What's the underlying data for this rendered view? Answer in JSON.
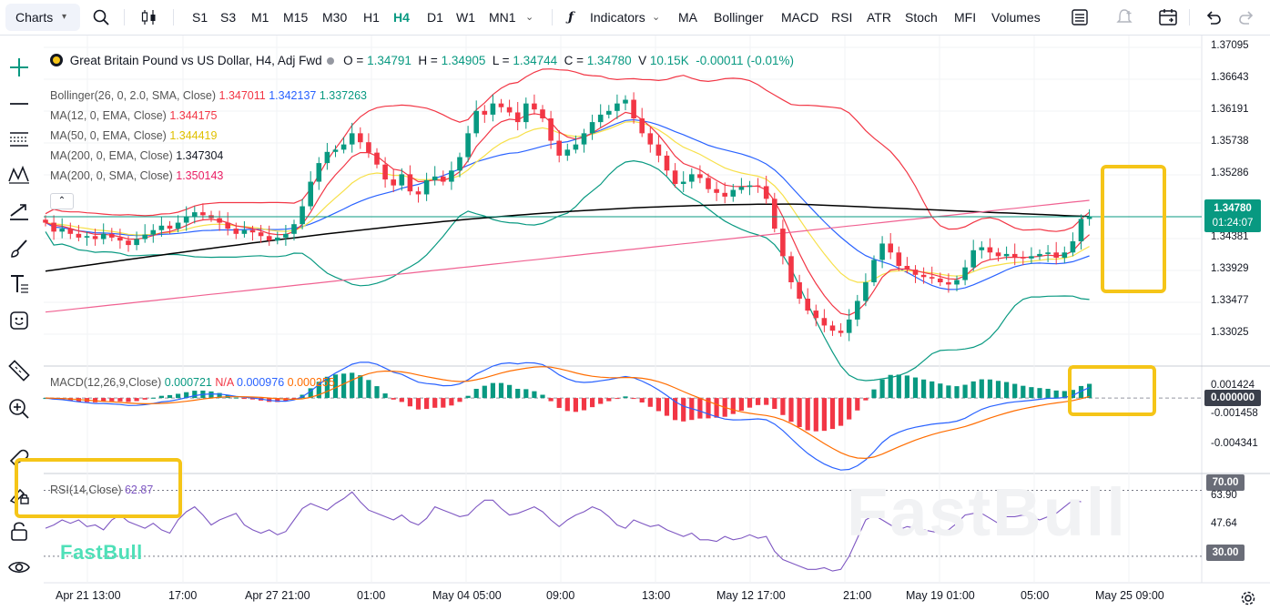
{
  "toolbar": {
    "charts_label": "Charts",
    "timeframes": [
      "S1",
      "S3",
      "M1",
      "M15",
      "M30",
      "H1",
      "H4",
      "D1",
      "W1",
      "MN1"
    ],
    "active_timeframe": "H4",
    "indicators_label": "Indicators",
    "quick_indicators": [
      "MA",
      "Bollinger",
      "MACD",
      "RSI",
      "ATR",
      "Stoch",
      "MFI",
      "Volumes"
    ]
  },
  "legend": {
    "symbol": "Great Britain Pound vs US Dollar, H4, Adj Fwd",
    "o_label": "O =",
    "o": "1.34791",
    "h_label": "H =",
    "h": "1.34905",
    "l_label": "L =",
    "l": "1.34744",
    "c_label": "C =",
    "c": "1.34780",
    "v_label": "V",
    "v": "10.15K",
    "change": "-0.00011 (-0.01%)",
    "bollinger_name": "Bollinger(26, 0, 2.0, SMA, Close)",
    "bollinger_upper": "1.347011",
    "bollinger_mid": "1.342137",
    "bollinger_lower": "1.337263",
    "ma12_name": "MA(12, 0, EMA, Close)",
    "ma12_value": "1.344175",
    "ma50_name": "MA(50, 0, EMA, Close)",
    "ma50_value": "1.344419",
    "ma200e_name": "MA(200, 0, EMA, Close)",
    "ma200e_value": "1.347304",
    "ma200s_name": "MA(200, 0, SMA, Close)",
    "ma200s_value": "1.350143",
    "macd_name": "MACD(12,26,9,Close)",
    "macd_hist": "0.000721",
    "macd_na": "N/A",
    "macd_line": "0.000976",
    "macd_signal": "0.000255",
    "rsi_name": "RSI(14,Close)",
    "rsi_value": "62.87"
  },
  "colors": {
    "up": "#089981",
    "down": "#f23645",
    "boll": "#f23645",
    "mid": "#2962ff",
    "lower": "#089981",
    "ma12": "#f23645",
    "ma50": "#f7e049",
    "ma200e": "#000000",
    "ma200s": "#f06292",
    "macd": "#2962ff",
    "signal": "#ff6d00",
    "rsi": "#7e57c2",
    "highlight": "#f5c518"
  },
  "price_axis": [
    "1.37095",
    "1.36643",
    "1.36191",
    "1.35738",
    "1.35286",
    "1.34381",
    "1.33929",
    "1.33477",
    "1.33025"
  ],
  "current_price": {
    "price": "1.34780",
    "countdown": "01:24:07"
  },
  "macd_axis": [
    "0.001424",
    "0.000000",
    "-0.001458",
    "-0.004341"
  ],
  "rsi_axis": {
    "upper": "70.00",
    "value": "63.90",
    "mid": "47.64",
    "lower": "30.00"
  },
  "time_axis": [
    "Apr 21 13:00",
    "17:00",
    "Apr 27 21:00",
    "01:00",
    "May 04 05:00",
    "09:00",
    "13:00",
    "May 12 17:00",
    "21:00",
    "May 19 01:00",
    "05:00",
    "May 25 09:00"
  ],
  "watermark": "FastBull",
  "chart_data": {
    "type": "candlestick",
    "symbol": "GBPUSD",
    "timeframe": "H4",
    "ylim": [
      1.328,
      1.372
    ],
    "last_close": 1.3478,
    "closes": [
      1.347,
      1.3458,
      1.3462,
      1.3455,
      1.345,
      1.3452,
      1.3448,
      1.3455,
      1.345,
      1.3446,
      1.344,
      1.3448,
      1.3454,
      1.346,
      1.3466,
      1.3462,
      1.347,
      1.3478,
      1.3484,
      1.348,
      1.3476,
      1.347,
      1.3462,
      1.3455,
      1.346,
      1.3457,
      1.3452,
      1.3446,
      1.345,
      1.3455,
      1.3468,
      1.3492,
      1.3525,
      1.355,
      1.3565,
      1.3568,
      1.3575,
      1.359,
      1.3578,
      1.3564,
      1.3548,
      1.3528,
      1.352,
      1.3535,
      1.3512,
      1.3508,
      1.3527,
      1.3532,
      1.3525,
      1.354,
      1.3558,
      1.359,
      1.362,
      1.3615,
      1.363,
      1.3625,
      1.3618,
      1.3605,
      1.363,
      1.3622,
      1.361,
      1.358,
      1.356,
      1.3568,
      1.3575,
      1.359,
      1.3605,
      1.3615,
      1.362,
      1.363,
      1.3635,
      1.361,
      1.359,
      1.3575,
      1.356,
      1.354,
      1.3522,
      1.3525,
      1.3535,
      1.353,
      1.3515,
      1.351,
      1.3505,
      1.3514,
      1.3518,
      1.352,
      1.3519,
      1.3502,
      1.3462,
      1.3425,
      1.339,
      1.3368,
      1.3352,
      1.3342,
      1.3332,
      1.3325,
      1.3322,
      1.334,
      1.3365,
      1.339,
      1.342,
      1.3442,
      1.343,
      1.3412,
      1.3407,
      1.34,
      1.3397,
      1.3395,
      1.339,
      1.3387,
      1.3393,
      1.341,
      1.3433,
      1.3437,
      1.343,
      1.3425,
      1.3428,
      1.3424,
      1.3422,
      1.3425,
      1.3428,
      1.343,
      1.3423,
      1.343,
      1.3445,
      1.3475,
      1.3478
    ],
    "macd": {
      "ylim": [
        -0.0063,
        0.0025
      ],
      "last_macd": 0.000976,
      "last_signal": 0.000255,
      "last_hist": 0.000721
    },
    "rsi": {
      "ylim": [
        15,
        78
      ],
      "levels": [
        70,
        30
      ],
      "last": 62.87,
      "values": [
        47,
        49,
        52,
        50,
        52,
        48,
        49,
        46,
        52,
        55,
        51,
        49,
        47,
        50,
        46,
        44,
        52,
        57,
        60,
        55,
        49,
        52,
        54,
        56,
        49,
        46,
        44,
        46,
        43,
        45,
        52,
        59,
        62,
        60,
        58,
        62,
        65,
        69,
        63,
        58,
        56,
        54,
        52,
        55,
        51,
        49,
        53,
        60,
        58,
        56,
        54,
        55,
        60,
        64,
        64,
        59,
        55,
        56,
        58,
        60,
        57,
        52,
        48,
        52,
        55,
        57,
        60,
        58,
        54,
        49,
        47,
        52,
        50,
        48,
        49,
        46,
        44,
        42,
        44,
        40,
        40,
        39,
        42,
        40,
        41,
        43,
        41,
        42,
        33,
        28,
        26,
        24,
        22,
        22,
        23,
        21,
        22,
        30,
        41,
        52,
        55,
        52,
        49,
        46,
        48,
        47,
        46,
        45,
        44,
        46,
        50,
        55,
        56,
        56,
        53,
        50,
        54,
        54,
        55,
        54,
        52,
        54,
        56,
        60,
        64,
        63
      ]
    }
  }
}
